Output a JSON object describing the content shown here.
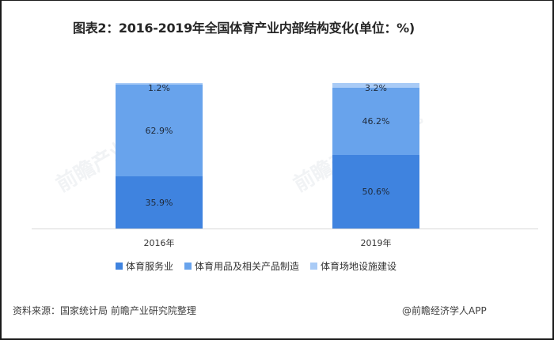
{
  "title": "图表2：2016-2019年全国体育产业内部结构变化(单位：%)",
  "chart_data": {
    "type": "bar",
    "stacked": true,
    "title": "图表2：2016-2019年全国体育产业内部结构变化(单位：%)",
    "xlabel": "",
    "ylabel": "",
    "ylim": [
      0,
      100
    ],
    "grid": false,
    "legend_position": "bottom",
    "categories": [
      "2016年",
      "2019年"
    ],
    "series": [
      {
        "name": "体育服务业",
        "values": [
          35.9,
          50.6
        ],
        "color": "#3f83df"
      },
      {
        "name": "体育用品及相关产品制造",
        "values": [
          62.9,
          46.2
        ],
        "color": "#68a3ec"
      },
      {
        "name": "体育场地设施建设",
        "values": [
          1.2,
          3.2
        ],
        "color": "#a9cbf6"
      }
    ],
    "data_labels": [
      [
        "35.9%",
        "50.6%"
      ],
      [
        "62.9%",
        "46.2%"
      ],
      [
        "1.2%",
        "3.2%"
      ]
    ]
  },
  "legend": [
    {
      "label": "体育服务业",
      "color": "#3f83df"
    },
    {
      "label": "体育用品及相关产品制造",
      "color": "#68a3ec"
    },
    {
      "label": "体育场地设施建设",
      "color": "#a9cbf6"
    }
  ],
  "footer": {
    "source": "资料来源：国家统计局 前瞻产业研究院整理",
    "credit": "@前瞻经济学人APP"
  },
  "watermark": "前瞻产业研究院"
}
